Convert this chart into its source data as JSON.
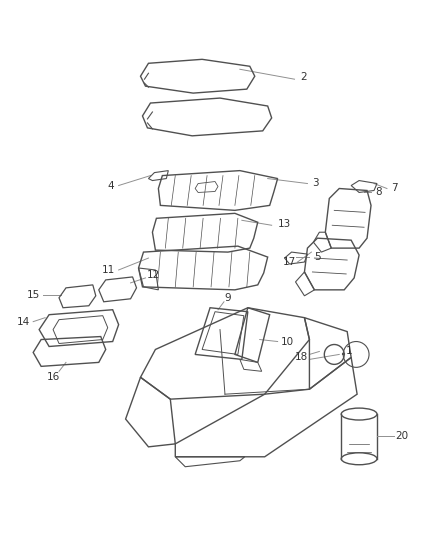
{
  "background_color": "#ffffff",
  "line_color": "#505050",
  "leader_color": "#909090",
  "label_color": "#333333",
  "figsize": [
    4.38,
    5.33
  ],
  "dpi": 100
}
